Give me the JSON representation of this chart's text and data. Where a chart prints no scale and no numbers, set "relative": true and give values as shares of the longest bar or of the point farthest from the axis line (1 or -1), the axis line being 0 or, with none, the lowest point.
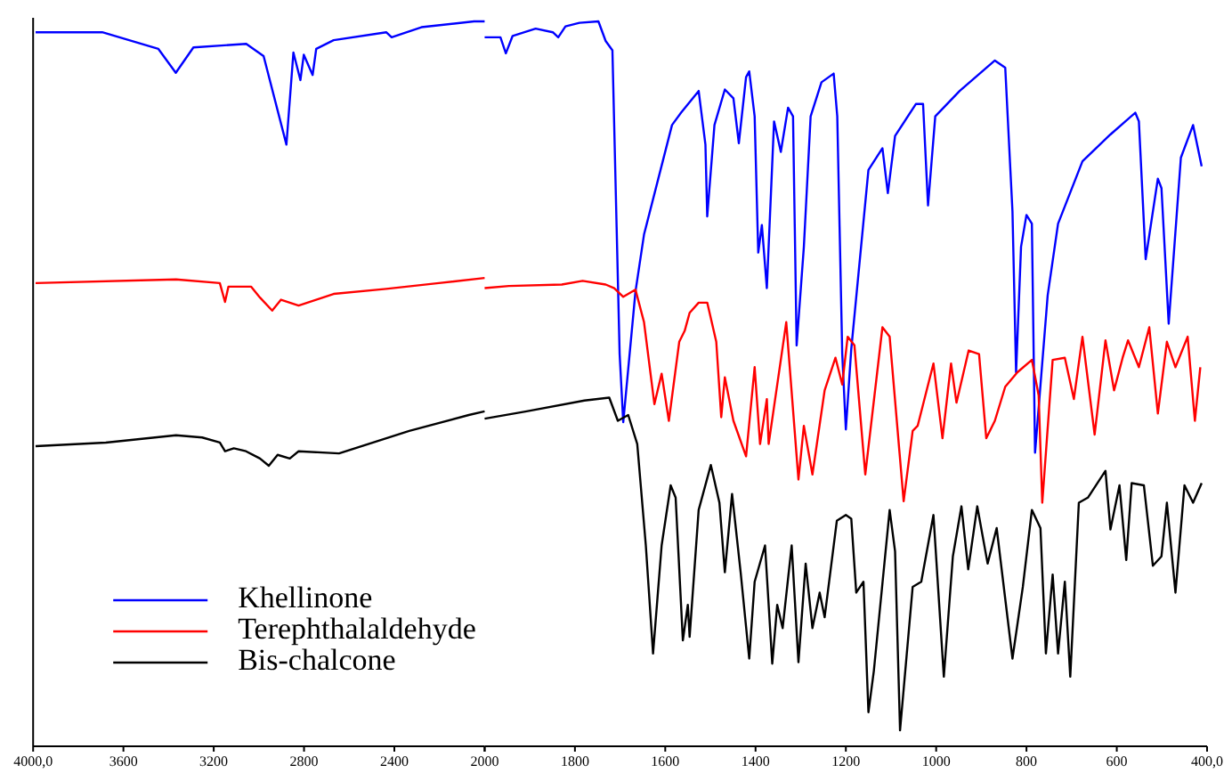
{
  "chart_data": [
    {
      "type": "line",
      "relative": true,
      "legend": "bottom",
      "grid": false,
      "marker": "none",
      "line_style": "solid",
      "xlim": [
        4000,
        2000
      ],
      "xticks": [
        {
          "value": 4000,
          "label": "4000,0"
        },
        3600,
        3200,
        2800,
        2400,
        {
          "value": 2000,
          "label": null
        }
      ],
      "series": [
        {
          "name": "Khellinone",
          "color": "#0000ff",
          "x": [
            3989,
            3694,
            3445,
            3368,
            3290,
            3056,
            2979,
            2878,
            2847,
            2816,
            2801,
            2762,
            2746,
            2669,
            2436,
            2412,
            2280,
            2047,
            2000
          ],
          "values": [
            0.985,
            0.985,
            0.962,
            0.929,
            0.964,
            0.969,
            0.952,
            0.83,
            0.957,
            0.919,
            0.954,
            0.926,
            0.962,
            0.974,
            0.985,
            0.978,
            0.992,
            1.0,
            1.0
          ]
        },
        {
          "name": "Terephthalaldehyde",
          "color": "#ff0000",
          "x": [
            3989,
            3367,
            3173,
            3150,
            3135,
            3034,
            2995,
            2941,
            2902,
            2824,
            2669,
            2436,
            2203,
            2000
          ],
          "values": [
            0.639,
            0.644,
            0.639,
            0.613,
            0.634,
            0.634,
            0.619,
            0.601,
            0.616,
            0.608,
            0.624,
            0.631,
            0.639,
            0.646
          ]
        },
        {
          "name": "Bis-chalcone",
          "color": "#000000",
          "x": [
            3989,
            3678,
            3367,
            3251,
            3173,
            3150,
            3111,
            3057,
            2995,
            2956,
            2917,
            2863,
            2824,
            2645,
            2334,
            2070,
            2000
          ],
          "values": [
            0.414,
            0.419,
            0.429,
            0.426,
            0.419,
            0.407,
            0.411,
            0.407,
            0.397,
            0.387,
            0.402,
            0.397,
            0.407,
            0.404,
            0.435,
            0.457,
            0.462
          ]
        }
      ]
    },
    {
      "type": "line",
      "relative": true,
      "grid": false,
      "marker": "none",
      "line_style": "solid",
      "xlim": [
        2000,
        400
      ],
      "xticks": [
        2000,
        1800,
        1600,
        1400,
        1200,
        1000,
        800,
        600,
        {
          "value": 400,
          "label": "400,0"
        }
      ],
      "series": [
        {
          "color": "#0000ff",
          "x": [
            2000,
            1965,
            1953,
            1938,
            1887,
            1849,
            1837,
            1821,
            1790,
            1748,
            1732,
            1717,
            1701,
            1693,
            1666,
            1647,
            1585,
            1565,
            1526,
            1511,
            1507,
            1491,
            1468,
            1449,
            1437,
            1421,
            1414,
            1402,
            1394,
            1386,
            1375,
            1359,
            1344,
            1328,
            1317,
            1309,
            1293,
            1278,
            1254,
            1227,
            1219,
            1208,
            1200,
            1188,
            1150,
            1119,
            1107,
            1091,
            1045,
            1029,
            1018,
            1002,
            948,
            870,
            847,
            831,
            823,
            812,
            800,
            788,
            781,
            753,
            730,
            676,
            614,
            559,
            551,
            536,
            509,
            501,
            485,
            458,
            431,
            412
          ],
          "values": [
            0.978,
            0.978,
            0.956,
            0.98,
            0.99,
            0.985,
            0.978,
            0.993,
            0.998,
            1.0,
            0.973,
            0.96,
            0.541,
            0.447,
            0.627,
            0.706,
            0.857,
            0.874,
            0.904,
            0.83,
            0.731,
            0.857,
            0.906,
            0.894,
            0.832,
            0.923,
            0.931,
            0.869,
            0.681,
            0.719,
            0.632,
            0.862,
            0.82,
            0.881,
            0.869,
            0.553,
            0.689,
            0.869,
            0.916,
            0.928,
            0.869,
            0.541,
            0.437,
            0.548,
            0.795,
            0.825,
            0.763,
            0.842,
            0.886,
            0.886,
            0.746,
            0.869,
            0.904,
            0.946,
            0.936,
            0.738,
            0.516,
            0.689,
            0.733,
            0.721,
            0.405,
            0.622,
            0.721,
            0.807,
            0.844,
            0.874,
            0.862,
            0.672,
            0.783,
            0.77,
            0.583,
            0.812,
            0.857,
            0.8
          ]
        },
        {
          "color": "#ff0000",
          "x": [
            2000,
            1946,
            1829,
            1783,
            1732,
            1713,
            1693,
            1666,
            1647,
            1624,
            1608,
            1592,
            1569,
            1557,
            1546,
            1526,
            1507,
            1487,
            1476,
            1468,
            1449,
            1421,
            1402,
            1390,
            1375,
            1371,
            1332,
            1305,
            1293,
            1274,
            1247,
            1223,
            1208,
            1196,
            1181,
            1157,
            1119,
            1103,
            1072,
            1052,
            1041,
            1006,
            986,
            967,
            955,
            928,
            905,
            889,
            870,
            847,
            820,
            788,
            773,
            765,
            742,
            715,
            695,
            676,
            649,
            625,
            606,
            587,
            575,
            551,
            528,
            509,
            489,
            470,
            443,
            427,
            415
          ],
          "values": [
            0.632,
            0.635,
            0.637,
            0.642,
            0.637,
            0.632,
            0.62,
            0.63,
            0.585,
            0.472,
            0.514,
            0.449,
            0.558,
            0.573,
            0.598,
            0.612,
            0.612,
            0.558,
            0.454,
            0.509,
            0.449,
            0.4,
            0.523,
            0.417,
            0.479,
            0.417,
            0.585,
            0.368,
            0.442,
            0.375,
            0.491,
            0.536,
            0.499,
            0.565,
            0.553,
            0.375,
            0.578,
            0.565,
            0.338,
            0.435,
            0.442,
            0.528,
            0.425,
            0.528,
            0.474,
            0.546,
            0.541,
            0.425,
            0.449,
            0.496,
            0.516,
            0.533,
            0.484,
            0.336,
            0.533,
            0.536,
            0.479,
            0.565,
            0.43,
            0.56,
            0.491,
            0.536,
            0.56,
            0.523,
            0.578,
            0.459,
            0.558,
            0.523,
            0.565,
            0.449,
            0.523
          ]
        },
        {
          "color": "#000000",
          "x": [
            2000,
            1907,
            1779,
            1724,
            1705,
            1682,
            1662,
            1643,
            1627,
            1608,
            1588,
            1577,
            1561,
            1550,
            1546,
            1526,
            1499,
            1480,
            1468,
            1452,
            1433,
            1414,
            1402,
            1379,
            1363,
            1352,
            1340,
            1320,
            1305,
            1289,
            1274,
            1258,
            1247,
            1220,
            1200,
            1188,
            1177,
            1161,
            1150,
            1138,
            1103,
            1091,
            1080,
            1052,
            1033,
            1006,
            983,
            963,
            944,
            929,
            909,
            886,
            866,
            831,
            808,
            788,
            769,
            757,
            742,
            730,
            715,
            703,
            684,
            664,
            625,
            614,
            594,
            579,
            567,
            540,
            520,
            501,
            489,
            470,
            450,
            431,
            412
          ],
          "values": [
            0.452,
            0.462,
            0.477,
            0.481,
            0.449,
            0.457,
            0.417,
            0.277,
            0.128,
            0.277,
            0.36,
            0.343,
            0.146,
            0.195,
            0.151,
            0.326,
            0.388,
            0.336,
            0.24,
            0.348,
            0.24,
            0.121,
            0.227,
            0.277,
            0.114,
            0.195,
            0.163,
            0.277,
            0.116,
            0.252,
            0.163,
            0.212,
            0.178,
            0.311,
            0.319,
            0.314,
            0.212,
            0.227,
            0.047,
            0.104,
            0.326,
            0.269,
            0.022,
            0.22,
            0.227,
            0.319,
            0.096,
            0.262,
            0.331,
            0.244,
            0.331,
            0.252,
            0.301,
            0.121,
            0.22,
            0.326,
            0.301,
            0.128,
            0.237,
            0.128,
            0.227,
            0.096,
            0.336,
            0.343,
            0.38,
            0.299,
            0.36,
            0.257,
            0.363,
            0.36,
            0.249,
            0.262,
            0.336,
            0.212,
            0.36,
            0.336,
            0.363
          ]
        }
      ]
    }
  ]
}
